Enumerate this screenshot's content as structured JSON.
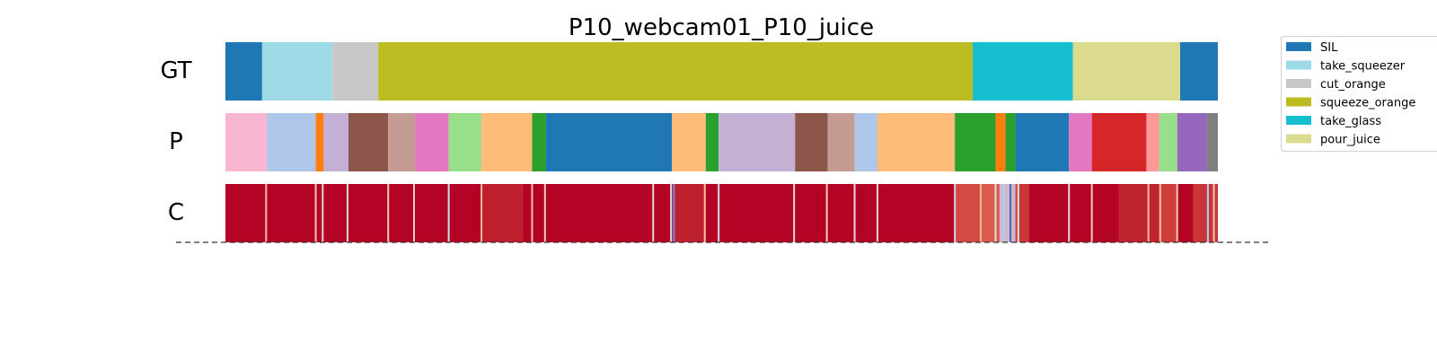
{
  "chart_data": {
    "type": "segmentation",
    "title": "P10_webcam01_P10_juice",
    "x_range": [
      0,
      1
    ],
    "rows": [
      {
        "label": "GT",
        "kind": "segments",
        "segments": [
          {
            "start": 0.0,
            "end": 0.037,
            "label": "SIL"
          },
          {
            "start": 0.037,
            "end": 0.108,
            "label": "take_squeezer"
          },
          {
            "start": 0.108,
            "end": 0.154,
            "label": "cut_orange"
          },
          {
            "start": 0.154,
            "end": 0.753,
            "label": "squeeze_orange"
          },
          {
            "start": 0.753,
            "end": 0.854,
            "label": "take_glass"
          },
          {
            "start": 0.854,
            "end": 0.962,
            "label": "pour_juice"
          },
          {
            "start": 0.962,
            "end": 1.0,
            "label": "SIL"
          }
        ]
      },
      {
        "label": "P",
        "kind": "segments",
        "segments": [
          {
            "start": 0.0,
            "end": 0.042,
            "color": "#f7b6d2"
          },
          {
            "start": 0.042,
            "end": 0.091,
            "color": "#aec7e8"
          },
          {
            "start": 0.091,
            "end": 0.099,
            "color": "#ff7f0e"
          },
          {
            "start": 0.099,
            "end": 0.124,
            "color": "#c5b0d5"
          },
          {
            "start": 0.124,
            "end": 0.164,
            "color": "#8c564b"
          },
          {
            "start": 0.164,
            "end": 0.191,
            "color": "#c49c94"
          },
          {
            "start": 0.191,
            "end": 0.225,
            "color": "#e377c2"
          },
          {
            "start": 0.225,
            "end": 0.258,
            "color": "#98df8a"
          },
          {
            "start": 0.258,
            "end": 0.309,
            "color": "#ffbb78"
          },
          {
            "start": 0.309,
            "end": 0.323,
            "color": "#2ca02c"
          },
          {
            "start": 0.323,
            "end": 0.45,
            "color": "#1f77b4"
          },
          {
            "start": 0.45,
            "end": 0.484,
            "color": "#ffbb78"
          },
          {
            "start": 0.484,
            "end": 0.497,
            "color": "#2ca02c"
          },
          {
            "start": 0.497,
            "end": 0.574,
            "color": "#c5b0d5"
          },
          {
            "start": 0.574,
            "end": 0.607,
            "color": "#8c564b"
          },
          {
            "start": 0.607,
            "end": 0.634,
            "color": "#c49c94"
          },
          {
            "start": 0.634,
            "end": 0.657,
            "color": "#aec7e8"
          },
          {
            "start": 0.657,
            "end": 0.735,
            "color": "#ffbb78"
          },
          {
            "start": 0.735,
            "end": 0.776,
            "color": "#2ca02c"
          },
          {
            "start": 0.776,
            "end": 0.786,
            "color": "#ff7f0e"
          },
          {
            "start": 0.786,
            "end": 0.796,
            "color": "#2ca02c"
          },
          {
            "start": 0.796,
            "end": 0.85,
            "color": "#1f77b4"
          },
          {
            "start": 0.85,
            "end": 0.873,
            "color": "#e377c2"
          },
          {
            "start": 0.873,
            "end": 0.928,
            "color": "#d62728"
          },
          {
            "start": 0.928,
            "end": 0.941,
            "color": "#ff9896"
          },
          {
            "start": 0.941,
            "end": 0.959,
            "color": "#98df8a"
          },
          {
            "start": 0.959,
            "end": 0.989,
            "color": "#9467bd"
          },
          {
            "start": 0.989,
            "end": 1.0,
            "color": "#7f7f7f"
          }
        ]
      },
      {
        "label": "C",
        "kind": "confidence",
        "base_color": "#b40426",
        "stripes": [
          {
            "x": 0.041,
            "color": "#f7b89c"
          },
          {
            "x": 0.091,
            "color": "#f4c5ad"
          },
          {
            "x": 0.098,
            "color": "#e0dbd7"
          },
          {
            "x": 0.123,
            "color": "#dcdddd"
          },
          {
            "x": 0.164,
            "color": "#f2cbb7"
          },
          {
            "x": 0.19,
            "color": "#e9d5cb"
          },
          {
            "x": 0.225,
            "color": "#cdd9ec"
          },
          {
            "x": 0.258,
            "color": "#f7b89c"
          },
          {
            "x": 0.309,
            "color": "#f6bfa6"
          },
          {
            "x": 0.322,
            "color": "#f2cbb7"
          },
          {
            "x": 0.431,
            "color": "#e9d5cb"
          },
          {
            "x": 0.449,
            "color": "#dddcdc"
          },
          {
            "x": 0.452,
            "color": "#6687ed"
          },
          {
            "x": 0.483,
            "color": "#f6bfa6"
          },
          {
            "x": 0.497,
            "color": "#cdd9ec"
          },
          {
            "x": 0.573,
            "color": "#e9d5cb"
          },
          {
            "x": 0.606,
            "color": "#f2cbb7"
          },
          {
            "x": 0.634,
            "color": "#dddcdc"
          },
          {
            "x": 0.657,
            "color": "#e9d5cb"
          },
          {
            "x": 0.735,
            "color": "#cdd9ec"
          },
          {
            "x": 0.761,
            "color": "#f7b89c"
          },
          {
            "x": 0.776,
            "color": "#dcdddd"
          },
          {
            "x": 0.784,
            "color": "#aec9fc"
          },
          {
            "x": 0.791,
            "color": "#4a63d3"
          },
          {
            "x": 0.799,
            "color": "#cdd9ec"
          },
          {
            "x": 0.85,
            "color": "#e0dbd7"
          },
          {
            "x": 0.873,
            "color": "#f2cbb7"
          },
          {
            "x": 0.93,
            "color": "#f7b89c"
          },
          {
            "x": 0.942,
            "color": "#f7b89c"
          },
          {
            "x": 0.959,
            "color": "#f4c5ad"
          },
          {
            "x": 0.99,
            "color": "#aec9fc"
          },
          {
            "x": 0.996,
            "color": "#f4c5ad"
          }
        ],
        "soft_regions": [
          {
            "start": 0.735,
            "end": 0.76,
            "color": "#de614d"
          },
          {
            "start": 0.76,
            "end": 0.8,
            "color": "#e9785d"
          },
          {
            "start": 0.78,
            "end": 0.796,
            "color": "#c7d7f0"
          },
          {
            "start": 0.796,
            "end": 0.81,
            "color": "#d0473d"
          },
          {
            "start": 0.9,
            "end": 0.94,
            "color": "#c32e31"
          },
          {
            "start": 0.94,
            "end": 0.96,
            "color": "#d65244"
          },
          {
            "start": 0.975,
            "end": 1.0,
            "color": "#d0473d"
          },
          {
            "start": 0.258,
            "end": 0.3,
            "color": "#c0282f"
          },
          {
            "start": 0.45,
            "end": 0.484,
            "color": "#c0282f"
          }
        ]
      }
    ],
    "legend": {
      "placement": "top-right",
      "entries": [
        {
          "label": "SIL",
          "color": "#1f77b4"
        },
        {
          "label": "take_squeezer",
          "color": "#9edae5"
        },
        {
          "label": "cut_orange",
          "color": "#c7c7c7"
        },
        {
          "label": "squeeze_orange",
          "color": "#bcbd22"
        },
        {
          "label": "take_glass",
          "color": "#17becf"
        },
        {
          "label": "pour_juice",
          "color": "#dbdb8d"
        }
      ]
    },
    "baseline": "dashed"
  }
}
